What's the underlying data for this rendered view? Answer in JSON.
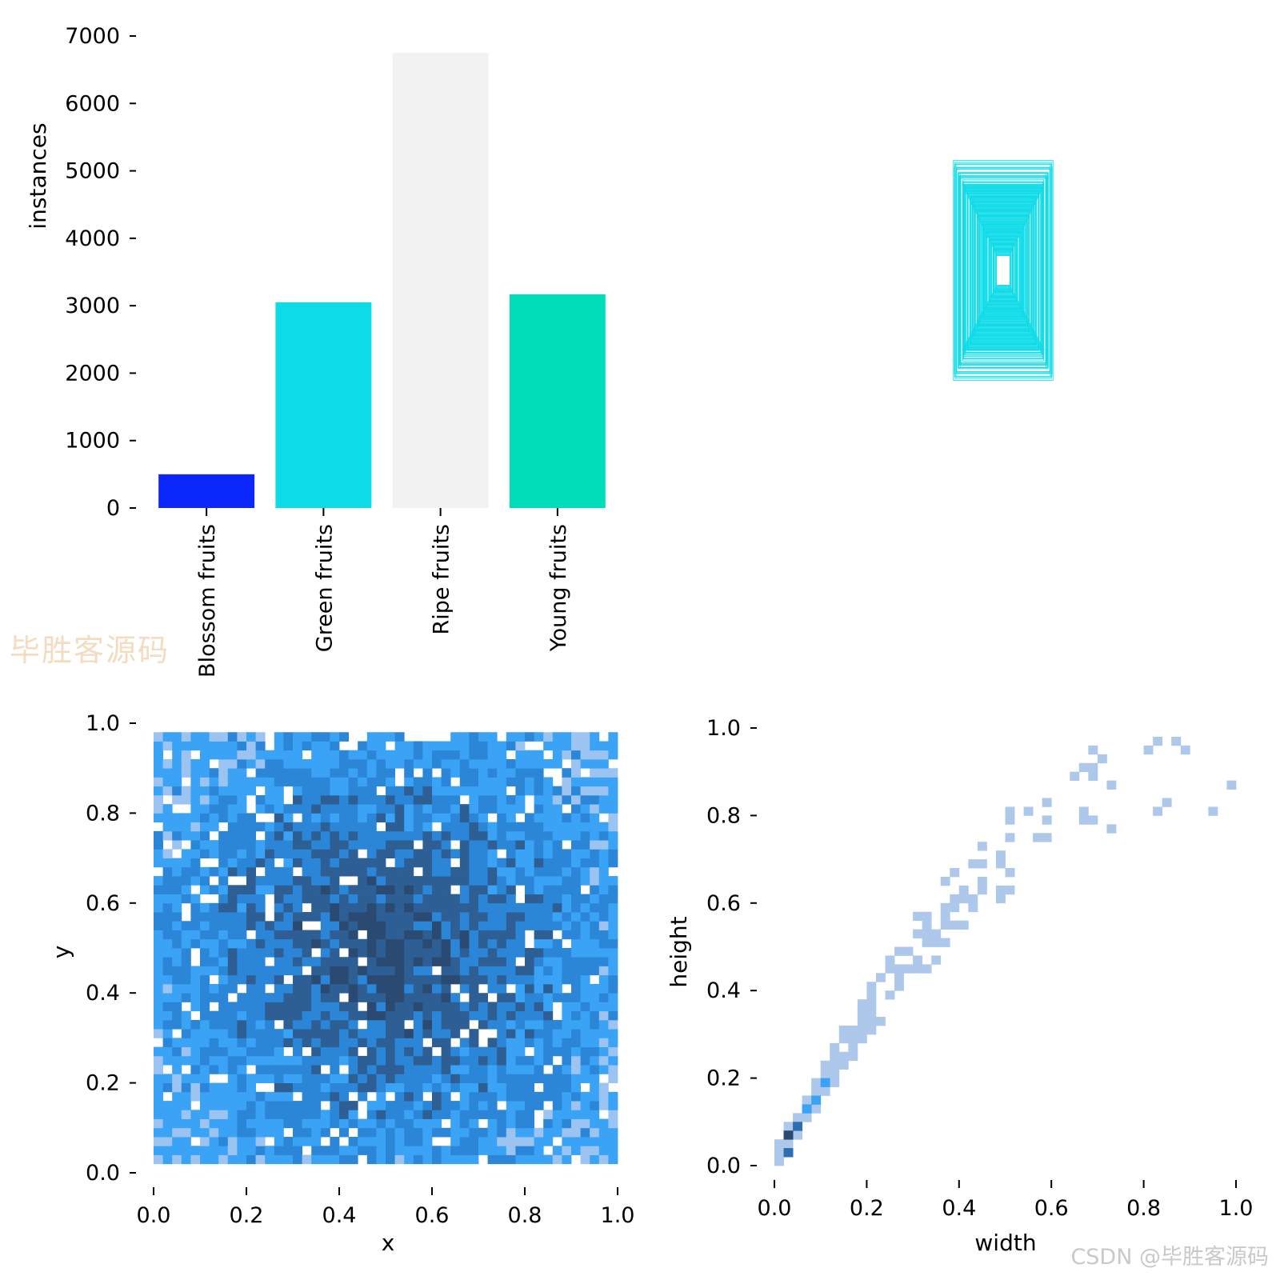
{
  "chart_data": [
    {
      "id": "instances-bar",
      "type": "bar",
      "categories": [
        "Blossom fruits",
        "Green fruits",
        "Ripe fruits",
        "Young fruits"
      ],
      "values": [
        500,
        3050,
        6750,
        3170
      ],
      "colors": [
        "#0b27fb",
        "#0cdbe8",
        "#f2f2f2",
        "#00deb9"
      ],
      "xlabel": "",
      "ylabel": "instances",
      "ylim": [
        0,
        7000
      ],
      "yticks": [
        "0",
        "1000",
        "2000",
        "3000",
        "4000",
        "5000",
        "6000",
        "7000"
      ],
      "grid": false
    },
    {
      "id": "box-overlay",
      "type": "other",
      "description_color": "#0cdbe8"
    },
    {
      "id": "xy-hist",
      "type": "heatmap",
      "xlabel": "x",
      "ylabel": "y",
      "xlim": [
        0,
        1
      ],
      "ylim": [
        0,
        1
      ],
      "xticks": [
        "0.0",
        "0.2",
        "0.4",
        "0.6",
        "0.8",
        "1.0"
      ],
      "yticks": [
        "0.0",
        "0.2",
        "0.4",
        "0.6",
        "0.8",
        "1.0"
      ],
      "colormap": [
        "#9cc4f2",
        "#3aa3f5",
        "#2b86d8",
        "#2d5f95",
        "#2a4a72"
      ],
      "x_range": [
        0.01,
        0.99
      ],
      "y_range": [
        0.03,
        0.97
      ],
      "peak_center": [
        0.5,
        0.5
      ]
    },
    {
      "id": "wh-hist",
      "type": "heatmap",
      "xlabel": "width",
      "ylabel": "height",
      "xlim": [
        0,
        1
      ],
      "ylim": [
        0,
        1
      ],
      "xticks": [
        "0.0",
        "0.2",
        "0.4",
        "0.6",
        "0.8",
        "1.0"
      ],
      "yticks": [
        "0.0",
        "0.2",
        "0.4",
        "0.6",
        "0.8",
        "1.0"
      ],
      "colormap": [
        "#aec8ec",
        "#3aa3f5",
        "#2b6fb0",
        "#2a4a72"
      ],
      "dense_cells": [
        {
          "w": 0.02,
          "h": 0.03,
          "level": 2
        },
        {
          "w": 0.03,
          "h": 0.06,
          "level": 3
        },
        {
          "w": 0.05,
          "h": 0.08,
          "level": 2
        },
        {
          "w": 0.07,
          "h": 0.12,
          "level": 1
        },
        {
          "w": 0.09,
          "h": 0.15,
          "level": 1
        },
        {
          "w": 0.11,
          "h": 0.19,
          "level": 1
        }
      ]
    }
  ],
  "watermarks": {
    "left": "毕胜客源码",
    "right": "CSDN @毕胜客源码"
  }
}
